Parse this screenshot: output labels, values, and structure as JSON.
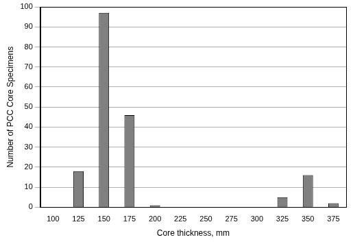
{
  "chart_data": {
    "type": "bar",
    "categories": [
      "100",
      "125",
      "150",
      "175",
      "200",
      "225",
      "250",
      "275",
      "300",
      "325",
      "350",
      "375"
    ],
    "values": [
      0,
      18,
      97,
      46,
      1,
      0,
      0,
      0,
      0,
      5,
      16,
      2
    ],
    "color": "#808080",
    "xlabel": "Core thickness, mm",
    "ylabel": "Number of PCC Core Specimens",
    "ylim": [
      0,
      100
    ],
    "yticks": [
      0,
      10,
      20,
      30,
      40,
      50,
      60,
      70,
      80,
      90,
      100
    ],
    "grid": true
  }
}
